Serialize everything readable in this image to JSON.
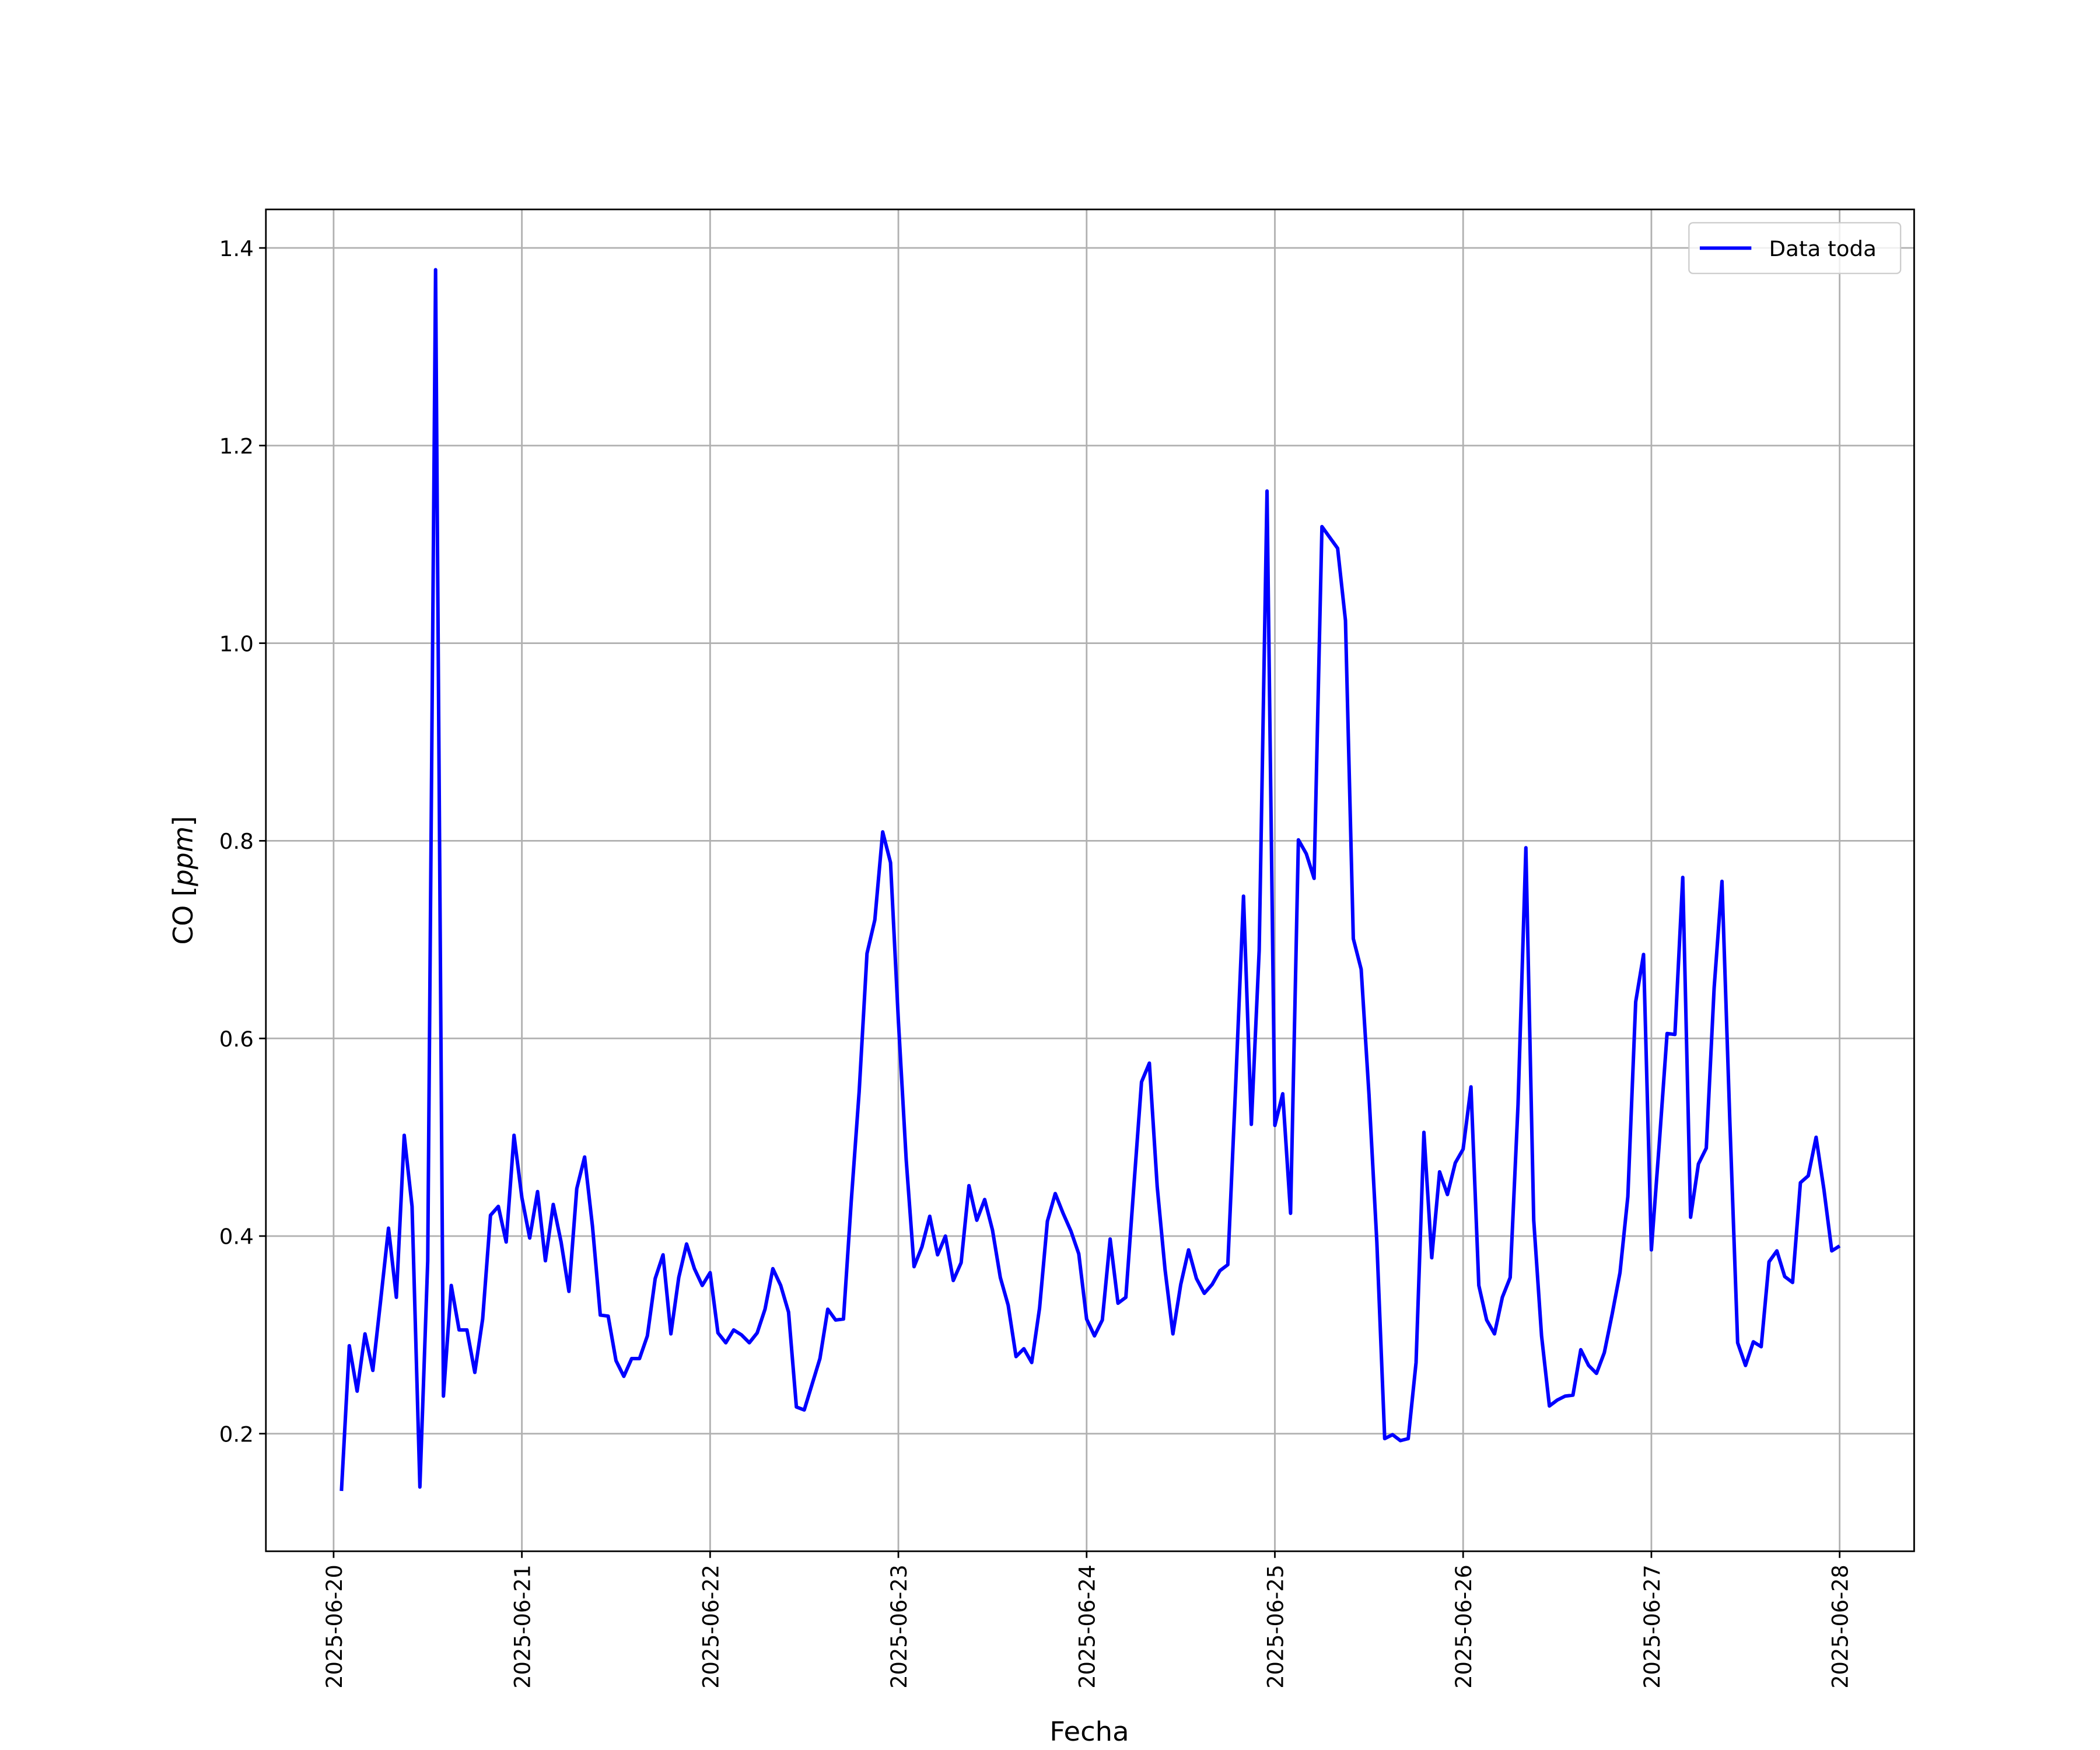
{
  "chart_data": {
    "type": "line",
    "xlabel": "Fecha",
    "ylabel": "CO [ppm]",
    "grid": true,
    "legend": "upper right",
    "xlim": [
      "2025-06-19T15:22",
      "2025-06-28T09:30"
    ],
    "xticks": [
      "2025-06-20",
      "2025-06-21",
      "2025-06-22",
      "2025-06-23",
      "2025-06-24",
      "2025-06-25",
      "2025-06-26",
      "2025-06-27",
      "2025-06-28"
    ],
    "ylim": [
      0.081,
      1.439
    ],
    "yticks": [
      0.2,
      0.4,
      0.6,
      0.8,
      {
        "value": 1,
        "label": "1.0"
      },
      1.2,
      1.4
    ],
    "x": [
      "2025-06-20T01:00",
      "2025-06-20T02:00",
      "2025-06-20T03:00",
      "2025-06-20T04:00",
      "2025-06-20T05:00",
      "2025-06-20T06:00",
      "2025-06-20T07:00",
      "2025-06-20T08:00",
      "2025-06-20T09:00",
      "2025-06-20T10:00",
      "2025-06-20T11:00",
      "2025-06-20T12:00",
      "2025-06-20T13:00",
      "2025-06-20T14:00",
      "2025-06-20T15:00",
      "2025-06-20T16:00",
      "2025-06-20T17:00",
      "2025-06-20T18:00",
      "2025-06-20T19:00",
      "2025-06-20T20:00",
      "2025-06-20T21:00",
      "2025-06-20T22:00",
      "2025-06-20T23:00",
      "2025-06-21T00:00",
      "2025-06-21T01:00",
      "2025-06-21T02:00",
      "2025-06-21T03:00",
      "2025-06-21T04:00",
      "2025-06-21T05:00",
      "2025-06-21T06:00",
      "2025-06-21T07:00",
      "2025-06-21T08:00",
      "2025-06-21T09:00",
      "2025-06-21T10:00",
      "2025-06-21T11:00",
      "2025-06-21T12:00",
      "2025-06-21T13:00",
      "2025-06-21T14:00",
      "2025-06-21T15:00",
      "2025-06-21T16:00",
      "2025-06-21T17:00",
      "2025-06-21T18:00",
      "2025-06-21T19:00",
      "2025-06-21T20:00",
      "2025-06-21T21:00",
      "2025-06-21T22:00",
      "2025-06-21T23:00",
      "2025-06-22T00:00",
      "2025-06-22T01:00",
      "2025-06-22T02:00",
      "2025-06-22T03:00",
      "2025-06-22T04:00",
      "2025-06-22T05:00",
      "2025-06-22T06:00",
      "2025-06-22T07:00",
      "2025-06-22T08:00",
      "2025-06-22T09:00",
      "2025-06-22T10:00",
      "2025-06-22T11:00",
      "2025-06-22T12:00",
      "2025-06-22T13:00",
      "2025-06-22T14:00",
      "2025-06-22T15:00",
      "2025-06-22T16:00",
      "2025-06-22T17:00",
      "2025-06-22T18:00",
      "2025-06-22T19:00",
      "2025-06-22T20:00",
      "2025-06-22T21:00",
      "2025-06-22T22:00",
      "2025-06-22T23:00",
      "2025-06-23T00:00",
      "2025-06-23T01:00",
      "2025-06-23T02:00",
      "2025-06-23T03:00",
      "2025-06-23T04:00",
      "2025-06-23T05:00",
      "2025-06-23T06:00",
      "2025-06-23T07:00",
      "2025-06-23T08:00",
      "2025-06-23T09:00",
      "2025-06-23T10:00",
      "2025-06-23T11:00",
      "2025-06-23T12:00",
      "2025-06-23T13:00",
      "2025-06-23T14:00",
      "2025-06-23T15:00",
      "2025-06-23T16:00",
      "2025-06-23T17:00",
      "2025-06-23T18:00",
      "2025-06-23T19:00",
      "2025-06-23T20:00",
      "2025-06-23T21:00",
      "2025-06-23T22:00",
      "2025-06-23T23:00",
      "2025-06-24T00:00",
      "2025-06-24T01:00",
      "2025-06-24T02:00",
      "2025-06-24T03:00",
      "2025-06-24T04:00",
      "2025-06-24T05:00",
      "2025-06-24T06:00",
      "2025-06-24T07:00",
      "2025-06-24T08:00",
      "2025-06-24T09:00",
      "2025-06-24T10:00",
      "2025-06-24T11:00",
      "2025-06-24T12:00",
      "2025-06-24T13:00",
      "2025-06-24T14:00",
      "2025-06-24T15:00",
      "2025-06-24T16:00",
      "2025-06-24T17:00",
      "2025-06-24T18:00",
      "2025-06-24T19:00",
      "2025-06-24T20:00",
      "2025-06-24T21:00",
      "2025-06-24T22:00",
      "2025-06-24T23:00",
      "2025-06-25T00:00",
      "2025-06-25T01:00",
      "2025-06-25T02:00",
      "2025-06-25T03:00",
      "2025-06-25T04:00",
      "2025-06-25T05:00",
      "2025-06-25T06:00",
      "2025-06-25T07:00",
      "2025-06-25T08:00",
      "2025-06-25T09:00",
      "2025-06-25T10:00",
      "2025-06-25T11:00",
      "2025-06-25T12:00",
      "2025-06-25T13:00",
      "2025-06-25T14:00",
      "2025-06-25T15:00",
      "2025-06-25T16:00",
      "2025-06-25T17:00",
      "2025-06-25T18:00",
      "2025-06-25T19:00",
      "2025-06-25T20:00",
      "2025-06-25T21:00",
      "2025-06-25T22:00",
      "2025-06-25T23:00",
      "2025-06-26T00:00",
      "2025-06-26T01:00",
      "2025-06-26T02:00",
      "2025-06-26T03:00",
      "2025-06-26T04:00",
      "2025-06-26T05:00",
      "2025-06-26T06:00",
      "2025-06-26T07:00",
      "2025-06-26T08:00",
      "2025-06-26T09:00",
      "2025-06-26T10:00",
      "2025-06-26T11:00",
      "2025-06-26T12:00",
      "2025-06-26T13:00",
      "2025-06-26T14:00",
      "2025-06-26T15:00",
      "2025-06-26T16:00",
      "2025-06-26T17:00",
      "2025-06-26T18:00",
      "2025-06-26T19:00",
      "2025-06-26T20:00",
      "2025-06-26T21:00",
      "2025-06-26T22:00",
      "2025-06-26T23:00",
      "2025-06-27T00:00",
      "2025-06-27T01:00",
      "2025-06-27T02:00",
      "2025-06-27T03:00",
      "2025-06-27T04:00",
      "2025-06-27T05:00",
      "2025-06-27T06:00",
      "2025-06-27T07:00",
      "2025-06-27T08:00",
      "2025-06-27T09:00",
      "2025-06-27T10:00",
      "2025-06-27T11:00",
      "2025-06-27T12:00",
      "2025-06-27T13:00",
      "2025-06-27T14:00",
      "2025-06-27T15:00",
      "2025-06-27T16:00",
      "2025-06-27T17:00",
      "2025-06-27T18:00",
      "2025-06-27T19:00",
      "2025-06-27T20:00",
      "2025-06-27T21:00",
      "2025-06-27T22:00",
      "2025-06-27T23:00",
      "2025-06-28T00:00"
    ],
    "series": [
      {
        "name": "Data toda",
        "color": "#0000ff",
        "values": [
          0.142,
          0.289,
          0.243,
          0.301,
          0.264,
          0.335,
          0.408,
          0.338,
          0.502,
          0.43,
          0.146,
          0.375,
          1.378,
          0.238,
          0.35,
          0.305,
          0.305,
          0.262,
          0.316,
          0.421,
          0.43,
          0.394,
          0.502,
          0.439,
          0.398,
          0.445,
          0.375,
          0.432,
          0.394,
          0.344,
          0.448,
          0.48,
          0.41,
          0.32,
          0.319,
          0.274,
          0.258,
          0.276,
          0.276,
          0.299,
          0.357,
          0.381,
          0.301,
          0.358,
          0.392,
          0.367,
          0.35,
          0.363,
          0.302,
          0.292,
          0.305,
          0.3,
          0.292,
          0.302,
          0.326,
          0.367,
          0.35,
          0.323,
          0.227,
          0.224,
          0.25,
          0.276,
          0.326,
          0.315,
          0.316,
          0.436,
          0.546,
          0.686,
          0.72,
          0.809,
          0.778,
          0.618,
          0.477,
          0.369,
          0.389,
          0.42,
          0.381,
          0.4,
          0.355,
          0.373,
          0.451,
          0.416,
          0.437,
          0.406,
          0.358,
          0.33,
          0.278,
          0.286,
          0.272,
          0.327,
          0.415,
          0.443,
          0.423,
          0.405,
          0.382,
          0.316,
          0.299,
          0.315,
          0.397,
          0.332,
          0.338,
          0.448,
          0.556,
          0.575,
          0.45,
          0.366,
          0.301,
          0.351,
          0.386,
          0.357,
          0.342,
          0.351,
          0.365,
          0.371,
          0.552,
          0.744,
          0.513,
          0.689,
          1.154,
          0.512,
          0.544,
          0.423,
          0.801,
          0.787,
          0.762,
          1.118,
          1.107,
          1.096,
          1.023,
          0.701,
          0.67,
          0.543,
          0.394,
          0.195,
          0.199,
          0.193,
          0.195,
          0.272,
          0.505,
          0.378,
          0.465,
          0.442,
          0.474,
          0.488,
          0.551,
          0.35,
          0.315,
          0.301,
          0.338,
          0.358,
          0.533,
          0.793,
          0.416,
          0.299,
          0.228,
          0.234,
          0.238,
          0.239,
          0.285,
          0.269,
          0.261,
          0.282,
          0.321,
          0.363,
          0.44,
          0.637,
          0.685,
          0.386,
          0.493,
          0.605,
          0.604,
          0.763,
          0.419,
          0.473,
          0.489,
          0.651,
          0.759,
          0.517,
          0.292,
          0.269,
          0.293,
          0.288,
          0.374,
          0.385,
          0.359,
          0.353,
          0.454,
          0.461,
          0.5,
          0.447,
          0.385,
          0.39
        ]
      }
    ]
  }
}
